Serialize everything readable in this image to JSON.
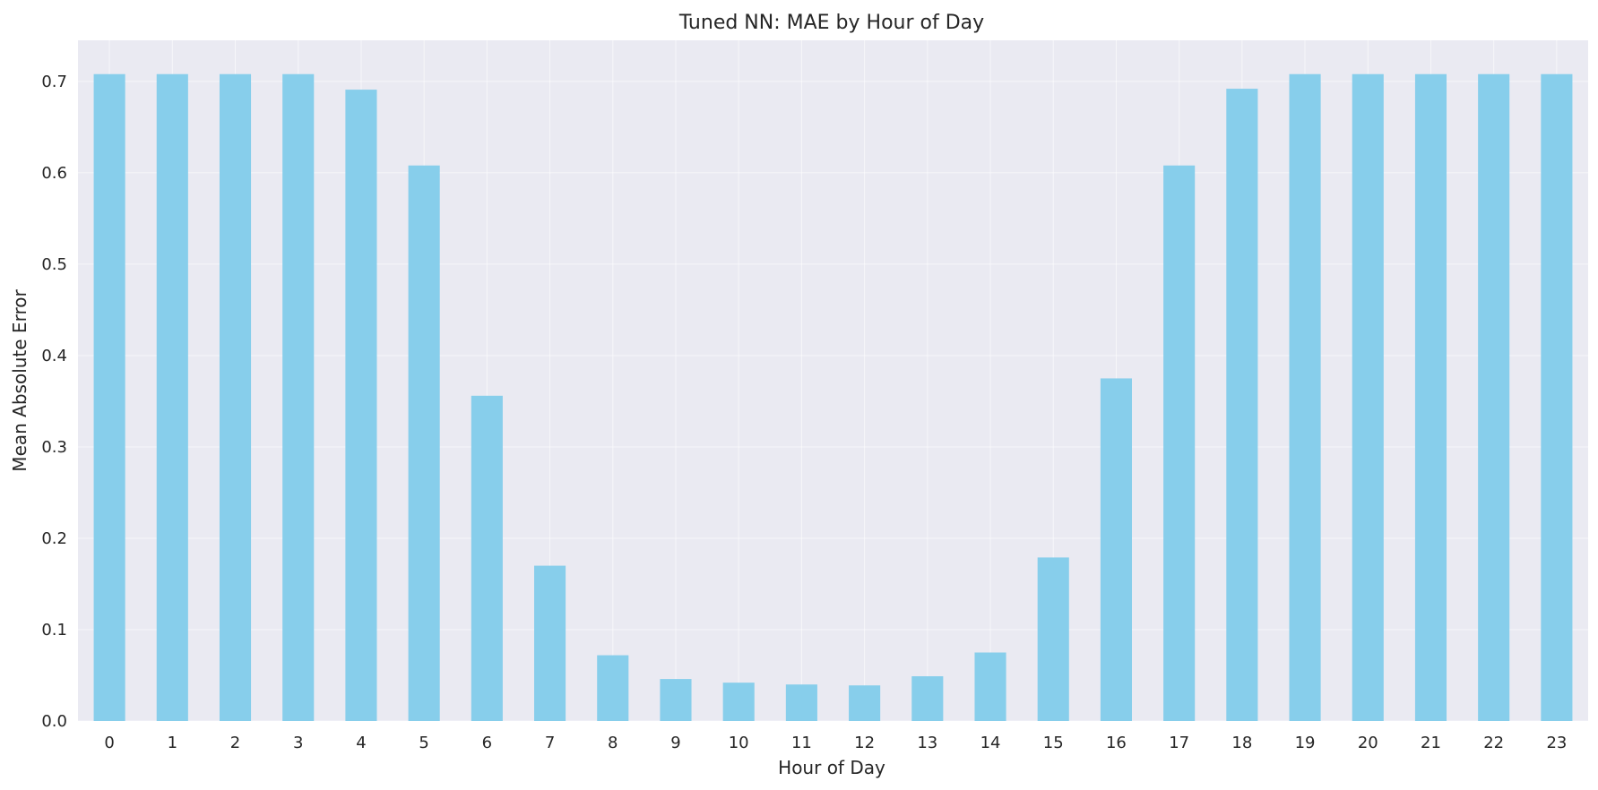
{
  "chart_data": {
    "type": "bar",
    "title": "Tuned NN: MAE by Hour of Day",
    "xlabel": "Hour of Day",
    "ylabel": "Mean Absolute Error",
    "categories": [
      "0",
      "1",
      "2",
      "3",
      "4",
      "5",
      "6",
      "7",
      "8",
      "9",
      "10",
      "11",
      "12",
      "13",
      "14",
      "15",
      "16",
      "17",
      "18",
      "19",
      "20",
      "21",
      "22",
      "23"
    ],
    "values": [
      0.708,
      0.708,
      0.708,
      0.708,
      0.691,
      0.608,
      0.356,
      0.17,
      0.072,
      0.046,
      0.042,
      0.04,
      0.039,
      0.049,
      0.075,
      0.179,
      0.375,
      0.608,
      0.692,
      0.708,
      0.708,
      0.708,
      0.708,
      0.708
    ],
    "ylim": [
      0,
      0.745
    ],
    "yticks": [
      "0.0",
      "0.1",
      "0.2",
      "0.3",
      "0.4",
      "0.5",
      "0.6",
      "0.7"
    ],
    "grid": true,
    "colors": {
      "bar": "#87ceeb",
      "plot_background": "#eaeaf2",
      "grid": "#ffffff",
      "text": "#262626"
    }
  }
}
